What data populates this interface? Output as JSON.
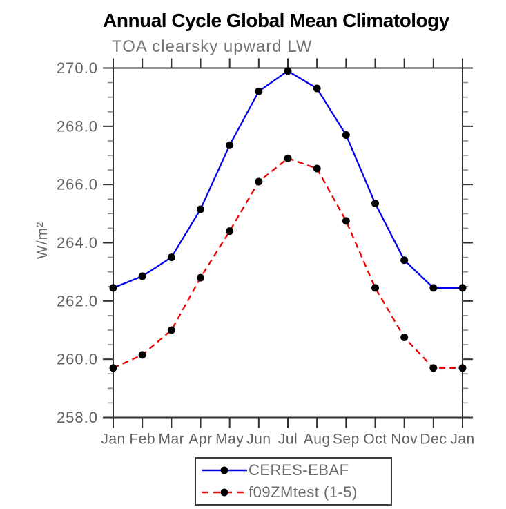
{
  "chart_data": {
    "type": "line",
    "title": "Annual Cycle Global Mean Climatology",
    "subtitle": "TOA clearsky upward LW",
    "ylabel": "W/m²",
    "xlabel": "",
    "categories": [
      "Jan",
      "Feb",
      "Mar",
      "Apr",
      "May",
      "Jun",
      "Jul",
      "Aug",
      "Sep",
      "Oct",
      "Nov",
      "Dec",
      "Jan"
    ],
    "ylim": [
      258.0,
      270.0
    ],
    "yticks_major": [
      270.0,
      268.0,
      266.0,
      264.0,
      262.0,
      260.0,
      258.0
    ],
    "ytick_labels": [
      "270.0",
      "268.0",
      "266.0",
      "264.0",
      "262.0",
      "260.0",
      "258.0"
    ],
    "ytick_minor_step": 0.5,
    "grid": false,
    "legend_position": "bottom-center",
    "series": [
      {
        "name": "CERES-EBAF",
        "color": "#0000ee",
        "line_style": "solid",
        "marker": "filled-circle",
        "marker_color": "#000000",
        "values": [
          262.45,
          262.85,
          263.5,
          265.15,
          267.35,
          269.2,
          269.9,
          269.3,
          267.7,
          265.35,
          263.4,
          262.45,
          262.45
        ]
      },
      {
        "name": "f09ZMtest (1-5)",
        "color": "#ee0000",
        "line_style": "dashed",
        "marker": "filled-circle",
        "marker_color": "#000000",
        "values": [
          259.7,
          260.15,
          261.0,
          262.8,
          264.4,
          266.1,
          266.9,
          266.55,
          264.75,
          262.45,
          260.75,
          259.7,
          259.7
        ]
      }
    ]
  }
}
